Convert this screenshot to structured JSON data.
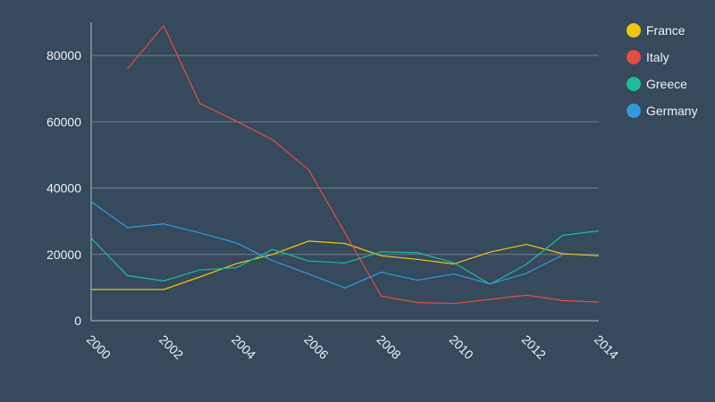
{
  "chart_data": {
    "type": "line",
    "title": "",
    "xlabel": "",
    "ylabel": "",
    "x": [
      2000,
      2001,
      2002,
      2003,
      2004,
      2005,
      2006,
      2007,
      2008,
      2009,
      2010,
      2011,
      2012,
      2013,
      2014
    ],
    "xticks": [
      "2000",
      "2002",
      "2004",
      "2006",
      "2008",
      "2010",
      "2012",
      "2014"
    ],
    "yticks": [
      "0",
      "20000",
      "40000",
      "60000",
      "80000"
    ],
    "xlim": [
      2000,
      2014
    ],
    "ylim": [
      0,
      90000
    ],
    "grid": true,
    "legend_position": "top-right",
    "series": [
      {
        "name": "France",
        "color": "#f1c40f",
        "values": [
          9400,
          9400,
          9400,
          13200,
          17200,
          20000,
          24000,
          23300,
          19600,
          18500,
          17100,
          20700,
          23000,
          20200,
          19600
        ]
      },
      {
        "name": "Italy",
        "color": "#e74c3c",
        "values": [
          null,
          76000,
          89000,
          65500,
          60200,
          54600,
          45500,
          26500,
          7400,
          5500,
          5200,
          6400,
          7700,
          6100,
          5600
        ]
      },
      {
        "name": "Greece",
        "color": "#1abc9c",
        "values": [
          24900,
          13600,
          12000,
          15300,
          16000,
          21500,
          18000,
          17400,
          20800,
          20500,
          17500,
          11000,
          17000,
          25700,
          27100
        ]
      },
      {
        "name": "Germany",
        "color": "#3498db",
        "values": [
          35900,
          28100,
          29200,
          26500,
          23500,
          18100,
          14100,
          9900,
          14600,
          12200,
          14100,
          11100,
          14300,
          19800,
          null
        ]
      }
    ]
  }
}
